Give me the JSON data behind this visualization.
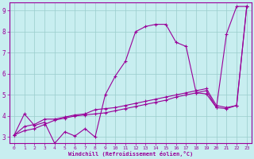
{
  "xlabel": "Windchill (Refroidissement éolien,°C)",
  "xlim": [
    -0.5,
    23.5
  ],
  "ylim": [
    2.7,
    9.4
  ],
  "xticks": [
    0,
    1,
    2,
    3,
    4,
    5,
    6,
    7,
    8,
    9,
    10,
    11,
    12,
    13,
    14,
    15,
    16,
    17,
    18,
    19,
    20,
    21,
    22,
    23
  ],
  "yticks": [
    3,
    4,
    5,
    6,
    7,
    8,
    9
  ],
  "bg_color": "#c8eef0",
  "line_color": "#990099",
  "grid_color": "#99cccc",
  "line1_x": [
    0,
    1,
    2,
    3,
    4,
    5,
    6,
    7,
    8,
    9,
    10,
    11,
    12,
    13,
    14,
    15,
    16,
    17,
    18,
    19,
    20,
    21,
    22,
    23
  ],
  "line1_y": [
    3.1,
    4.1,
    3.55,
    3.7,
    2.7,
    3.25,
    3.05,
    3.4,
    3.0,
    5.0,
    5.9,
    6.6,
    8.0,
    8.25,
    8.35,
    8.35,
    7.5,
    7.3,
    5.1,
    5.05,
    4.4,
    7.9,
    9.2,
    9.2
  ],
  "line2_x": [
    0,
    1,
    2,
    3,
    4,
    5,
    6,
    7,
    8,
    9,
    10,
    11,
    12,
    13,
    14,
    15,
    16,
    17,
    18,
    19,
    20,
    21,
    22,
    23
  ],
  "line2_y": [
    3.1,
    3.5,
    3.6,
    3.85,
    3.85,
    3.95,
    4.05,
    4.1,
    4.3,
    4.35,
    4.4,
    4.5,
    4.6,
    4.7,
    4.8,
    4.9,
    5.0,
    5.1,
    5.2,
    5.3,
    4.5,
    4.4,
    4.5,
    9.2
  ],
  "line3_x": [
    0,
    1,
    2,
    3,
    4,
    5,
    6,
    7,
    8,
    9,
    10,
    11,
    12,
    13,
    14,
    15,
    16,
    17,
    18,
    19,
    20,
    21,
    22,
    23
  ],
  "line3_y": [
    3.1,
    3.3,
    3.4,
    3.6,
    3.8,
    3.9,
    4.0,
    4.05,
    4.1,
    4.15,
    4.25,
    4.35,
    4.45,
    4.55,
    4.65,
    4.75,
    4.9,
    5.0,
    5.1,
    5.2,
    4.4,
    4.35,
    4.5,
    9.2
  ]
}
